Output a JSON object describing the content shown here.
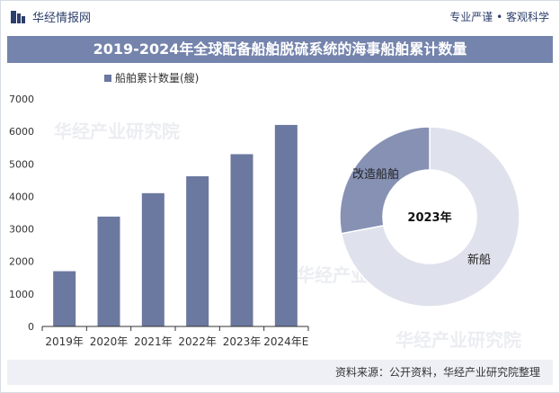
{
  "header": {
    "brand_name": "华经情报网",
    "slogan": "专业严谨 • 客观科学",
    "logo_icon": "hjqbw-logo-icon"
  },
  "title": "2019-2024年全球配备船舶脱硫系统的海事船舶累计数量",
  "footer": {
    "source": "资料来源：公开资料，华经产业研究院整理"
  },
  "watermark": {
    "text": "华经产业研究院",
    "url": "www.huaon.com"
  },
  "colors": {
    "bar": "#6b789f",
    "title_bg": "#7584ad",
    "donut_new": "#dfe2ec",
    "donut_retrofit": "#8691b4",
    "axis": "#333333"
  },
  "chart_data": [
    {
      "type": "bar",
      "legend": [
        "船舶累计数量(艘)"
      ],
      "legend_position": "top-left",
      "categories": [
        "2019年",
        "2020年",
        "2021年",
        "2022年",
        "2023年",
        "2024年E"
      ],
      "series": [
        {
          "name": "船舶累计数量(艘)",
          "values": [
            1700,
            3380,
            4100,
            4620,
            5300,
            6200
          ]
        }
      ],
      "ylim": [
        0,
        7000
      ],
      "yticks": [
        "0",
        "1000",
        "2000",
        "3000",
        "4000",
        "5000",
        "6000",
        "7000"
      ],
      "grid": false
    },
    {
      "type": "pie",
      "donut": true,
      "center_label": "2023年",
      "labels": [
        "新船",
        "改造船舶"
      ],
      "values": [
        72,
        28
      ]
    }
  ]
}
